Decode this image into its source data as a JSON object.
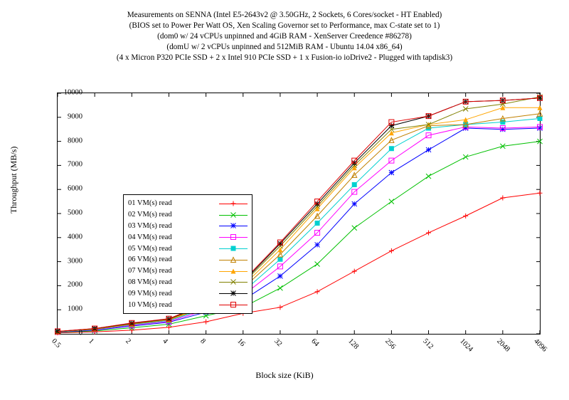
{
  "titles": [
    "Measurements on SENNA (Intel E5-2643v2 @ 3.50GHz, 2 Sockets, 6 Cores/socket - HT Enabled)",
    "(BIOS set to Power Per Watt OS, Xen Scaling Governor set to Performance, max C-state set to 1)",
    "(dom0 w/ 24 vCPUs unpinned and 4GiB RAM - XenServer Creedence #86278)",
    "(domU w/ 2 vCPUs unpinned and 512MiB RAM - Ubuntu 14.04 x86_64)",
    "(4 x Micron P320 PCIe SSD + 2 x Intel 910 PCIe SSD + 1 x Fusion-io ioDrive2 - Plugged with tapdisk3)"
  ],
  "xlabel": "Block size (KiB)",
  "ylabel": "Throughput (MB/s)",
  "background": "#ffffff",
  "font_family": "Times New Roman",
  "title_fontsize": 11.2,
  "tick_fontsize": 10.5,
  "label_fontsize": 12,
  "ylim": [
    0,
    10000
  ],
  "ytick_step": 1000,
  "x_categories": [
    "0.5",
    "1",
    "2",
    "4",
    "8",
    "16",
    "32",
    "64",
    "128",
    "256",
    "512",
    "1024",
    "2048",
    "4096"
  ],
  "x_positions_log": [
    -1,
    0,
    1,
    2,
    3,
    4,
    5,
    6,
    7,
    8,
    9,
    10,
    11,
    12
  ],
  "xlim_log": [
    -1,
    12
  ],
  "grid": false,
  "plot_border_color": "#000000",
  "xtick_rotation": 45,
  "legend": {
    "position": "upper-left-inside",
    "border": "#000000",
    "background": "#ffffff"
  },
  "series": [
    {
      "label": "01 VM(s) read",
      "color": "#ff0000",
      "marker": "plus",
      "y": [
        40,
        80,
        150,
        270,
        500,
        850,
        1100,
        1750,
        2600,
        3450,
        4200,
        4900,
        5650,
        5850
      ]
    },
    {
      "label": "02 VM(s) read",
      "color": "#00c000",
      "marker": "x",
      "y": [
        60,
        120,
        250,
        400,
        750,
        1100,
        1900,
        2900,
        4400,
        5500,
        6550,
        7350,
        7800,
        8000
      ]
    },
    {
      "label": "03 VM(s) read",
      "color": "#0000ff",
      "marker": "asterisk",
      "y": [
        70,
        150,
        320,
        480,
        900,
        1400,
        2400,
        3700,
        5400,
        6700,
        7650,
        8550,
        8500,
        8550
      ]
    },
    {
      "label": "04 VM(s) read",
      "color": "#ff00ff",
      "marker": "square",
      "y": [
        80,
        170,
        360,
        520,
        980,
        1600,
        2800,
        4200,
        5900,
        7200,
        8250,
        8600,
        8550,
        8600
      ]
    },
    {
      "label": "05 VM(s) read",
      "color": "#00d0d0",
      "marker": "square-filled",
      "y": [
        85,
        180,
        380,
        550,
        1050,
        1750,
        3100,
        4600,
        6200,
        7700,
        8550,
        8700,
        8800,
        8950
      ]
    },
    {
      "label": "06 VM(s) read",
      "color": "#c08000",
      "marker": "triangle",
      "y": [
        90,
        190,
        400,
        580,
        1100,
        1900,
        3300,
        4900,
        6600,
        8050,
        8650,
        8700,
        8950,
        9150
      ]
    },
    {
      "label": "07 VM(s) read",
      "color": "#ffa500",
      "marker": "triangle-filled",
      "y": [
        95,
        200,
        420,
        600,
        1150,
        2000,
        3500,
        5200,
        6900,
        8350,
        8700,
        8900,
        9400,
        9400
      ]
    },
    {
      "label": "08 VM(s) read",
      "color": "#808000",
      "marker": "x-thin",
      "y": [
        98,
        210,
        430,
        610,
        1200,
        2100,
        3650,
        5300,
        7000,
        8500,
        8700,
        9350,
        9550,
        9850
      ]
    },
    {
      "label": "09 VM(s) read",
      "color": "#000000",
      "marker": "asterisk-heavy",
      "y": [
        100,
        215,
        440,
        620,
        1220,
        2150,
        3750,
        5400,
        7100,
        8650,
        9050,
        9650,
        9700,
        9800
      ]
    },
    {
      "label": "10 VM(s) read",
      "color": "#e00000",
      "marker": "square-red",
      "y": [
        105,
        220,
        450,
        630,
        1250,
        2200,
        3800,
        5500,
        7200,
        8800,
        9050,
        9650,
        9700,
        9800
      ]
    }
  ]
}
